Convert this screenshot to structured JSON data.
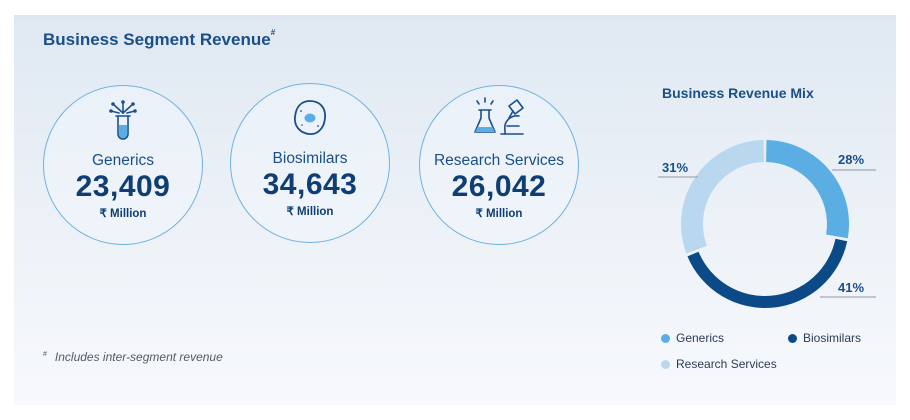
{
  "header": {
    "title": "Business Segment Revenue",
    "title_mark": "#"
  },
  "segments": [
    {
      "label": "Generics",
      "value": "23,409",
      "unit": "₹ Million",
      "icon": "test-tube-icon"
    },
    {
      "label": "Biosimilars",
      "value": "34,643",
      "unit": "₹ Million",
      "icon": "cell-icon"
    },
    {
      "label": "Research Services",
      "value": "26,042",
      "unit": "₹ Million",
      "icon": "lab-microscope-icon"
    }
  ],
  "footnote": {
    "mark": "#",
    "text": "Includes inter-segment revenue"
  },
  "chart_data": {
    "type": "pie",
    "title": "Business Revenue Mix",
    "categories": [
      "Generics",
      "Biosimilars",
      "Research Services"
    ],
    "values": [
      28,
      41,
      31
    ],
    "value_labels": [
      "28%",
      "41%",
      "31%"
    ],
    "colors": [
      "#5aaee3",
      "#0b4a86",
      "#b9d8f0"
    ],
    "legend": [
      "Generics",
      "Biosimilars",
      "Research Services"
    ],
    "legend_position": "bottom"
  }
}
